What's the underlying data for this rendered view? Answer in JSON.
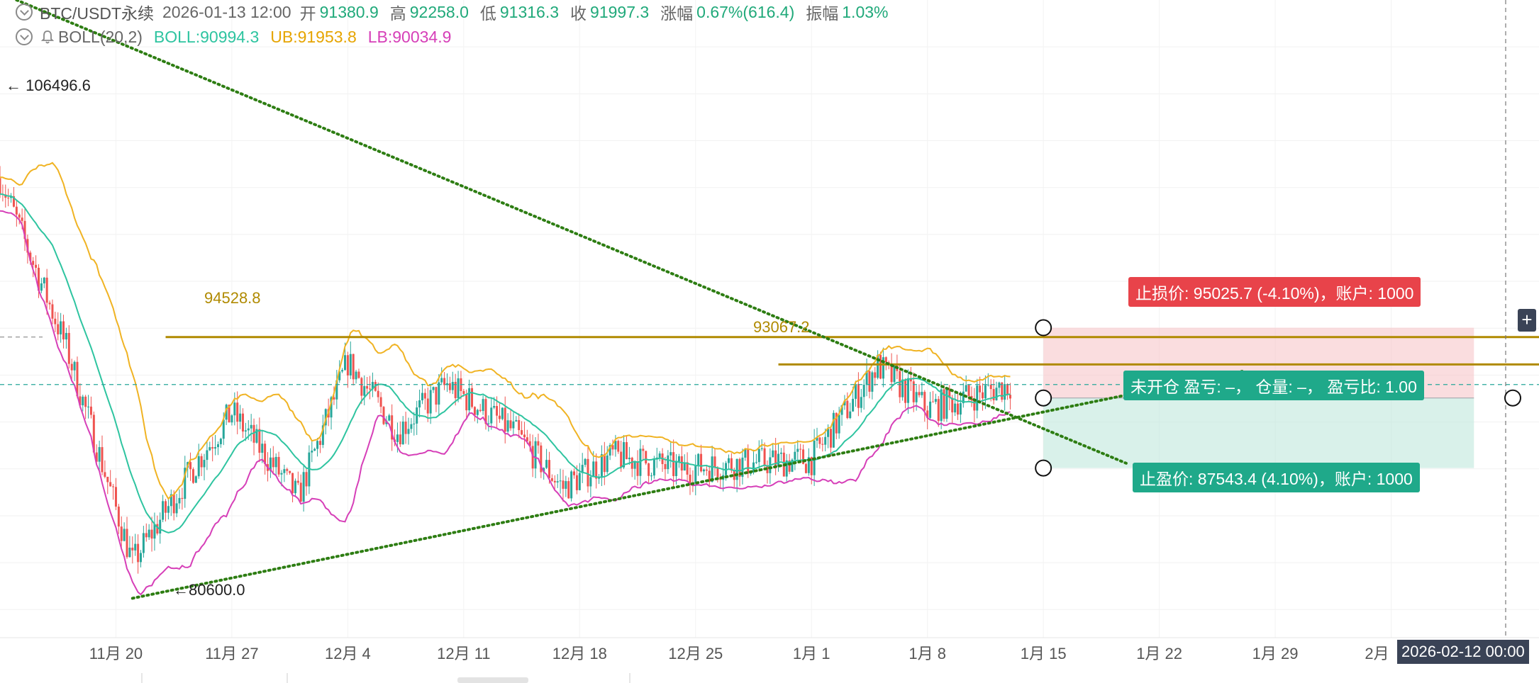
{
  "header": {
    "symbol": "BTC/USDT永续",
    "datetime": "2026-01-13 12:00",
    "open_label": "开",
    "open": "91380.9",
    "high_label": "高",
    "high": "92258.0",
    "low_label": "低",
    "low": "91316.3",
    "close_label": "收",
    "close": "91997.3",
    "change_label": "涨幅",
    "change": "0.67%(616.4)",
    "amplitude_label": "振幅",
    "amplitude": "1.03%"
  },
  "indicator": {
    "name": "BOLL(20,2)",
    "mid": "BOLL:90994.3",
    "upper": "UB:91953.8",
    "lower": "LB:90034.9"
  },
  "annotations": {
    "high_marker": "106496.6",
    "low_marker": "80600.0",
    "level1": "94528.8",
    "level2": "93067.2",
    "stop_loss": "止损价: 95025.7 (-4.10%)，账户: 1000",
    "position": "未开仓  盈亏: –，  仓量: –，  盈亏比: 1.00",
    "take_profit": "止盈价: 87543.4 (4.10%)，账户: 1000",
    "crosshair_time": "2026-02-12 00:00"
  },
  "colors": {
    "up": "#26a69a",
    "down": "#ef5350",
    "boll_mid": "#2ec4a0",
    "boll_upper": "#f0b323",
    "boll_lower": "#d63fb8",
    "trendline": "#2d7d12",
    "level": "#b08a00",
    "stop": "#e8434a",
    "profit": "#1fa98a"
  },
  "chart_data": {
    "type": "candlestick",
    "x_ticks": [
      "11月 20",
      "11月 27",
      "12月 4",
      "12月 11",
      "12月 18",
      "12月 25",
      "1月 1",
      "1月 8",
      "1月 15",
      "1月 22",
      "1月 29",
      "2月"
    ],
    "date_range": [
      "2025-11-13",
      "2026-02-12"
    ],
    "interval": "4h",
    "bollinger": {
      "period": 20,
      "k": 2,
      "last_mid": 90994.3,
      "last_upper": 91953.8,
      "last_lower": 90034.9
    },
    "key_closes": [
      {
        "date": "2025-11-13",
        "price": 103000
      },
      {
        "date": "2025-11-17",
        "price": 94000
      },
      {
        "date": "2025-11-21",
        "price": 82500
      },
      {
        "date": "2025-11-25",
        "price": 88000
      },
      {
        "date": "2025-11-27",
        "price": 90500
      },
      {
        "date": "2025-12-01",
        "price": 86000
      },
      {
        "date": "2025-12-04",
        "price": 93200
      },
      {
        "date": "2025-12-07",
        "price": 89500
      },
      {
        "date": "2025-12-10",
        "price": 92000
      },
      {
        "date": "2025-12-14",
        "price": 89500
      },
      {
        "date": "2025-12-17",
        "price": 86500
      },
      {
        "date": "2025-12-20",
        "price": 88200
      },
      {
        "date": "2025-12-24",
        "price": 87500
      },
      {
        "date": "2025-12-28",
        "price": 87800
      },
      {
        "date": "2026-01-01",
        "price": 88000
      },
      {
        "date": "2026-01-05",
        "price": 93000
      },
      {
        "date": "2026-01-08",
        "price": 90700
      },
      {
        "date": "2026-01-13",
        "price": 91997.3
      }
    ],
    "horizontal_levels": [
      94528.8,
      93067.2
    ],
    "trendlines": [
      {
        "from": {
          "date": "2025-11-14",
          "price": 112500
        },
        "to": {
          "date": "2026-01-20",
          "price": 87800
        }
      },
      {
        "from": {
          "date": "2025-11-21",
          "price": 80600
        },
        "to": {
          "date": "2026-01-27",
          "price": 92700
        }
      }
    ],
    "position_tool": {
      "entry": 91279.5,
      "stop_loss": 95025.7,
      "take_profit": 87543.4,
      "risk_reward": 1.0
    },
    "markers": {
      "high": 106496.6,
      "low": 80600.0
    },
    "last_price": 91997.3
  }
}
